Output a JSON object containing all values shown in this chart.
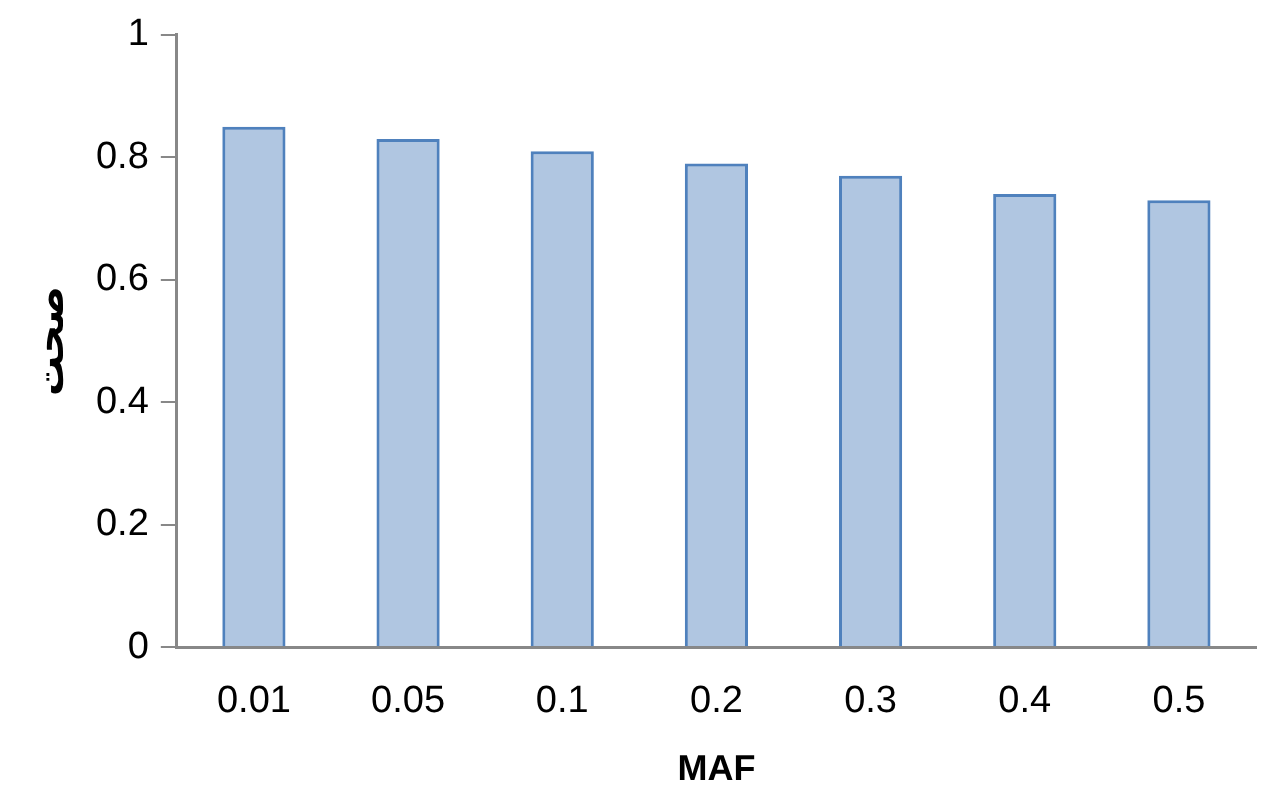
{
  "chart_data": {
    "type": "bar",
    "xlabel": "MAF",
    "ylabel": "صحت",
    "categories": [
      "0.01",
      "0.05",
      "0.1",
      "0.2",
      "0.3",
      "0.4",
      "0.5"
    ],
    "values": [
      0.85,
      0.83,
      0.81,
      0.79,
      0.77,
      0.74,
      0.73
    ],
    "color": "#4f81bd",
    "ylim": [
      0,
      1
    ],
    "yticks": [
      0,
      0.2,
      0.4,
      0.6,
      0.8,
      1
    ],
    "grid": false,
    "legend": false
  }
}
